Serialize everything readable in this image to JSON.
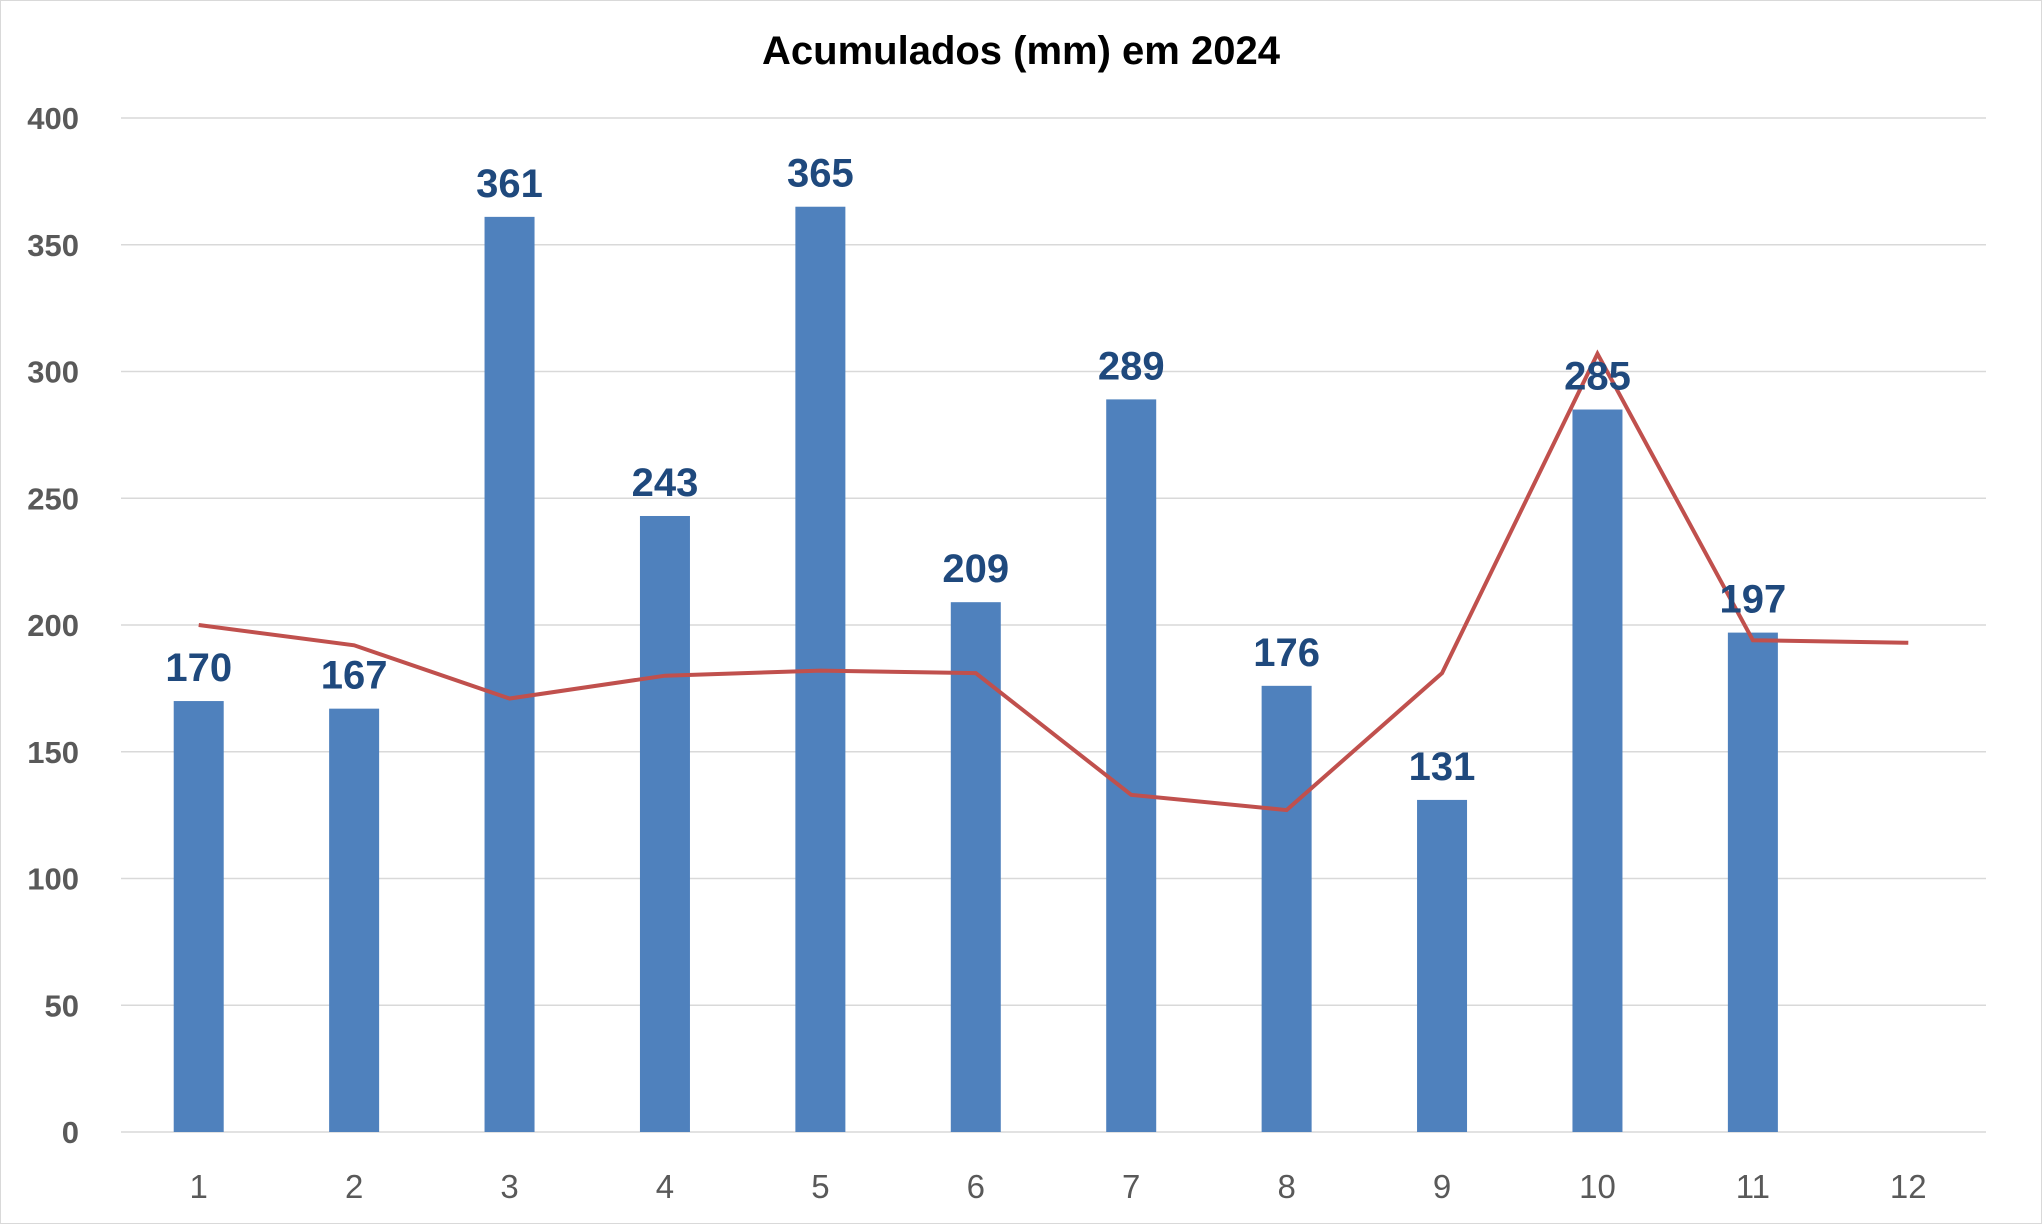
{
  "chart_data": {
    "type": "bar",
    "title": "Acumulados (mm) em 2024",
    "xlabel": "",
    "ylabel": "",
    "categories": [
      "1",
      "2",
      "3",
      "4",
      "5",
      "6",
      "7",
      "8",
      "9",
      "10",
      "11",
      "12"
    ],
    "series": [
      {
        "type": "bar",
        "values": [
          170,
          167,
          361,
          243,
          365,
          209,
          289,
          176,
          131,
          285,
          197,
          null
        ],
        "data_labels": [
          "170",
          "167",
          "361",
          "243",
          "365",
          "209",
          "289",
          "176",
          "131",
          "285",
          "197",
          ""
        ],
        "color": "#4f81bd"
      },
      {
        "type": "line",
        "values": [
          200,
          192,
          171,
          180,
          182,
          181,
          133,
          127,
          181,
          307,
          194,
          193
        ],
        "color": "#c0504d"
      }
    ],
    "ylim": [
      0,
      400
    ],
    "yticks": [
      "0",
      "50",
      "100",
      "150",
      "200",
      "250",
      "300",
      "350",
      "400"
    ],
    "grid": true,
    "legend": "none"
  }
}
